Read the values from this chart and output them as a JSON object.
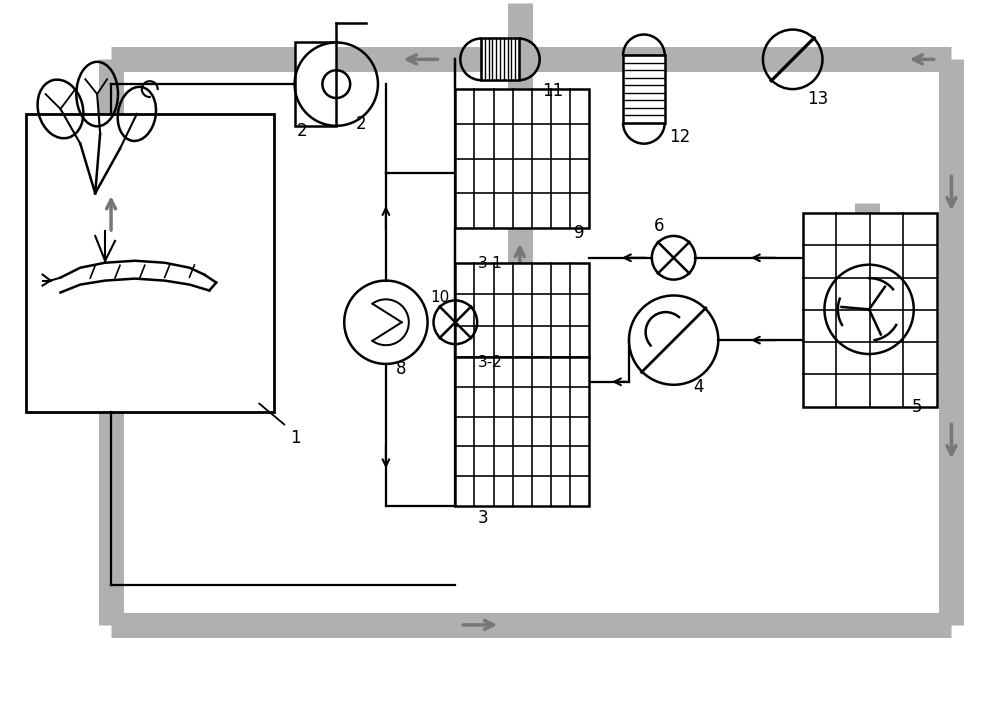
{
  "bg_color": "#ffffff",
  "lc": "#000000",
  "gc": "#b0b0b0",
  "gpw": 18,
  "lw": 1.8,
  "figsize": [
    10.0,
    7.12
  ],
  "xlim": [
    0,
    10
  ],
  "ylim": [
    0,
    7.12
  ]
}
